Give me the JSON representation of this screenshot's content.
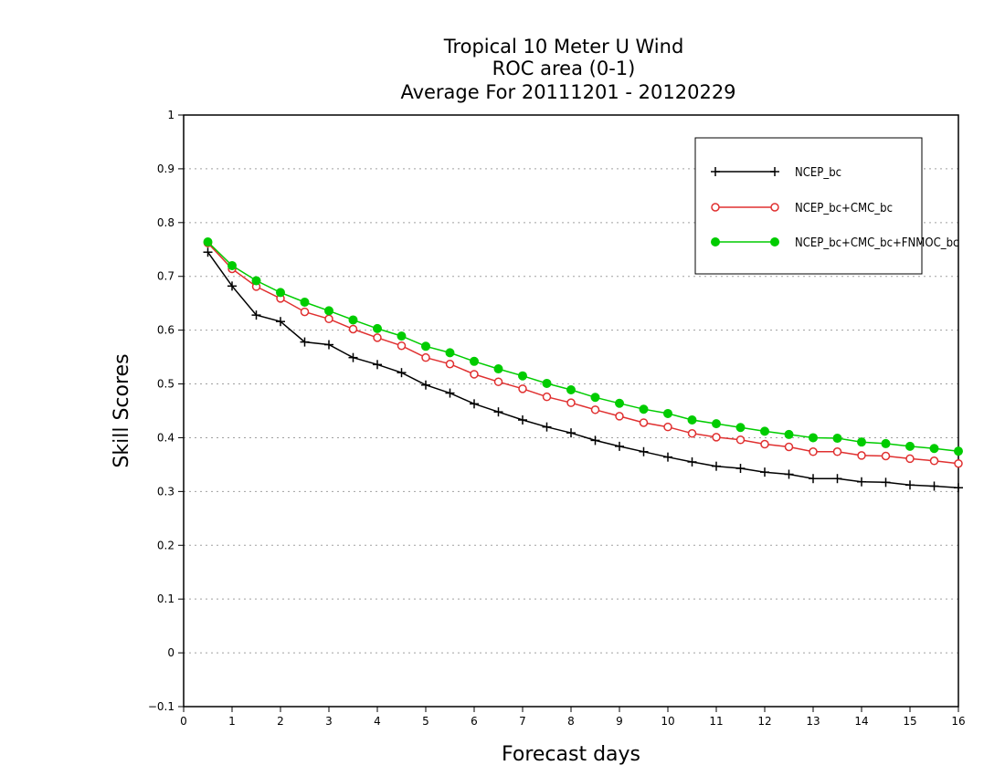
{
  "chart_data": {
    "type": "line",
    "title_lines": [
      "Tropical 10 Meter U Wind",
      "ROC area (0-1)",
      "Average For 20111201 - 20120229"
    ],
    "xlabel": "Forecast days",
    "ylabel": "Skill Scores",
    "xlim": [
      0,
      16
    ],
    "ylim": [
      -0.1,
      1
    ],
    "xticks": [
      "0",
      "1",
      "2",
      "3",
      "4",
      "5",
      "6",
      "7",
      "8",
      "9",
      "10",
      "11",
      "12",
      "13",
      "14",
      "15",
      "16"
    ],
    "yticks": [
      "−0.1",
      "0",
      "0.1",
      "0.2",
      "0.3",
      "0.4",
      "0.5",
      "0.6",
      "0.7",
      "0.8",
      "0.9",
      "1"
    ],
    "grid": true,
    "legend_position": "top-right",
    "x": [
      0.5,
      1,
      1.5,
      2,
      2.5,
      3,
      3.5,
      4,
      4.5,
      5,
      5.5,
      6,
      6.5,
      7,
      7.5,
      8,
      8.5,
      9,
      9.5,
      10,
      10.5,
      11,
      11.5,
      12,
      12.5,
      13,
      13.5,
      14,
      14.5,
      15,
      15.5,
      16
    ],
    "series": [
      {
        "name": "NCEP_bc",
        "color": "#000000",
        "marker": "plus",
        "values": [
          0.745,
          0.682,
          0.628,
          0.616,
          0.578,
          0.573,
          0.549,
          0.536,
          0.521,
          0.498,
          0.483,
          0.463,
          0.448,
          0.433,
          0.42,
          0.409,
          0.395,
          0.384,
          0.374,
          0.364,
          0.355,
          0.347,
          0.343,
          0.336,
          0.332,
          0.324,
          0.324,
          0.318,
          0.317,
          0.312,
          0.31,
          0.307
        ]
      },
      {
        "name": "NCEP_bc+CMC_bc",
        "color": "#e03030",
        "marker": "open-circle",
        "values": [
          0.762,
          0.714,
          0.681,
          0.659,
          0.634,
          0.621,
          0.602,
          0.586,
          0.571,
          0.549,
          0.537,
          0.518,
          0.504,
          0.491,
          0.476,
          0.465,
          0.452,
          0.44,
          0.428,
          0.42,
          0.408,
          0.401,
          0.396,
          0.388,
          0.383,
          0.374,
          0.374,
          0.367,
          0.366,
          0.361,
          0.357,
          0.352
        ]
      },
      {
        "name": "NCEP_bc+CMC_bc+FNMOC_bc",
        "color": "#00cc00",
        "marker": "filled-circle",
        "values": [
          0.764,
          0.72,
          0.692,
          0.67,
          0.652,
          0.636,
          0.619,
          0.603,
          0.589,
          0.57,
          0.558,
          0.542,
          0.528,
          0.515,
          0.501,
          0.489,
          0.475,
          0.464,
          0.453,
          0.445,
          0.433,
          0.426,
          0.419,
          0.412,
          0.406,
          0.4,
          0.399,
          0.392,
          0.389,
          0.384,
          0.38,
          0.375
        ]
      }
    ]
  }
}
